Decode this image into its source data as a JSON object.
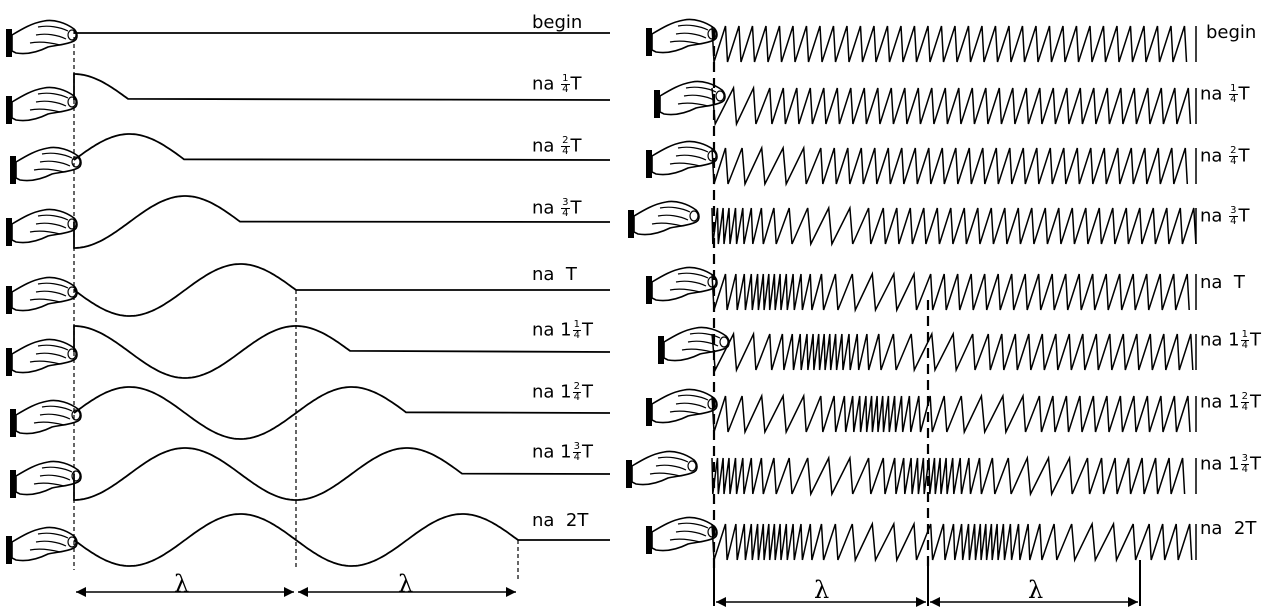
{
  "panels": {
    "left": {
      "rows": [
        {
          "label_text": "begin",
          "label_prefix": "",
          "frac_num": "",
          "frac_den": "",
          "label_suffix": ""
        },
        {
          "label_text": "",
          "label_prefix": "na ",
          "frac_num": "1",
          "frac_den": "4",
          "label_suffix": "T"
        },
        {
          "label_text": "",
          "label_prefix": "na ",
          "frac_num": "2",
          "frac_den": "4",
          "label_suffix": "T"
        },
        {
          "label_text": "",
          "label_prefix": "na ",
          "frac_num": "3",
          "frac_den": "4",
          "label_suffix": "T"
        },
        {
          "label_text": "na  T",
          "label_prefix": "",
          "frac_num": "",
          "frac_den": "",
          "label_suffix": ""
        },
        {
          "label_text": "",
          "label_prefix": "na 1",
          "frac_num": "1",
          "frac_den": "4",
          "label_suffix": "T"
        },
        {
          "label_text": "",
          "label_prefix": "na 1",
          "frac_num": "2",
          "frac_den": "4",
          "label_suffix": "T"
        },
        {
          "label_text": "",
          "label_prefix": "na 1",
          "frac_num": "3",
          "frac_den": "4",
          "label_suffix": "T"
        },
        {
          "label_text": "na  2T",
          "label_prefix": "",
          "frac_num": "",
          "frac_den": "",
          "label_suffix": ""
        }
      ],
      "lambda": [
        "λ",
        "λ"
      ]
    },
    "right": {
      "rows": [
        {
          "label_text": "begin",
          "label_prefix": "",
          "frac_num": "",
          "frac_den": "",
          "label_suffix": ""
        },
        {
          "label_text": "",
          "label_prefix": "na ",
          "frac_num": "1",
          "frac_den": "4",
          "label_suffix": "T"
        },
        {
          "label_text": "",
          "label_prefix": "na ",
          "frac_num": "2",
          "frac_den": "4",
          "label_suffix": "T"
        },
        {
          "label_text": "",
          "label_prefix": "na ",
          "frac_num": "3",
          "frac_den": "4",
          "label_suffix": "T"
        },
        {
          "label_text": "na  T",
          "label_prefix": "",
          "frac_num": "",
          "frac_den": "",
          "label_suffix": ""
        },
        {
          "label_text": "",
          "label_prefix": "na 1",
          "frac_num": "1",
          "frac_den": "4",
          "label_suffix": "T"
        },
        {
          "label_text": "",
          "label_prefix": "na 1",
          "frac_num": "2",
          "frac_den": "4",
          "label_suffix": "T"
        },
        {
          "label_text": "",
          "label_prefix": "na 1",
          "frac_num": "3",
          "frac_den": "4",
          "label_suffix": "T"
        },
        {
          "label_text": "na  2T",
          "label_prefix": "",
          "frac_num": "",
          "frac_den": "",
          "label_suffix": ""
        }
      ],
      "lambda": [
        "λ",
        "λ"
      ]
    }
  },
  "icons": {
    "hand": "hand-holding-rope-icon"
  },
  "colors": {
    "ink": "#000000",
    "background": "#ffffff"
  }
}
